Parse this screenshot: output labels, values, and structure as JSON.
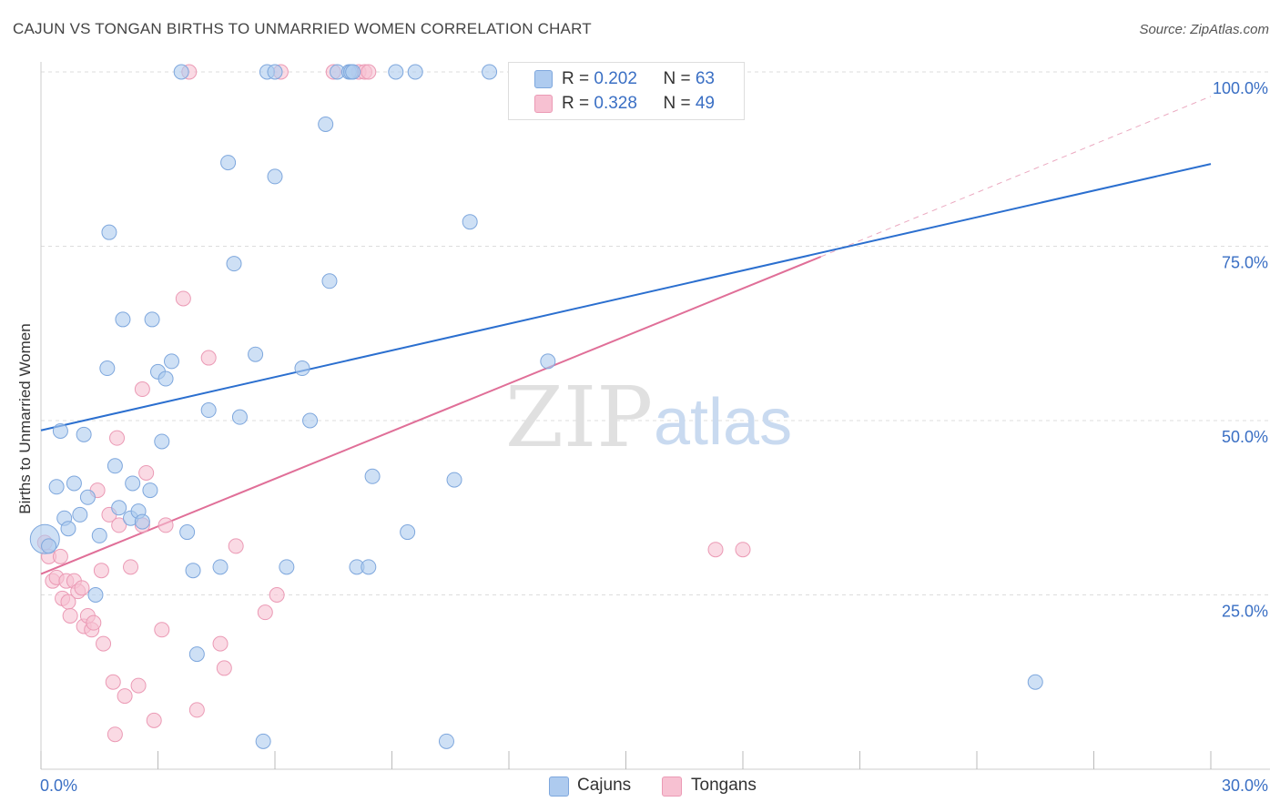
{
  "title": "CAJUN VS TONGAN BIRTHS TO UNMARRIED WOMEN CORRELATION CHART",
  "source": "Source: ZipAtlas.com",
  "watermark": {
    "zip": "ZIP",
    "atlas": "atlas"
  },
  "legend": {
    "rows": [
      {
        "r_label": "R = ",
        "r_value": "0.202",
        "n_label": "N = ",
        "n_value": "63"
      },
      {
        "r_label": "R = ",
        "r_value": "0.328",
        "n_label": "N = ",
        "n_value": "49"
      }
    ]
  },
  "bottom_legend": {
    "cajuns": "Cajuns",
    "tongans": "Tongans"
  },
  "colors": {
    "cajun_fill": "#aecbef",
    "cajun_stroke": "#7ea7dd",
    "cajun_line": "#2b6fcf",
    "tongan_fill": "#f7c1d2",
    "tongan_stroke": "#eb9ab5",
    "tongan_line": "#e06f98",
    "grid": "#dddddd",
    "tick_label": "#3a6fc4"
  },
  "chart_data": {
    "type": "scatter",
    "title": "CAJUN VS TONGAN BIRTHS TO UNMARRIED WOMEN CORRELATION CHART",
    "xlabel": "",
    "ylabel": "Births to Unmarried Women",
    "xlim": [
      0,
      30
    ],
    "ylim": [
      0,
      100
    ],
    "x_tick_labels": [
      "0.0%",
      "30.0%"
    ],
    "y_tick_labels": [
      "25.0%",
      "50.0%",
      "75.0%",
      "100.0%"
    ],
    "y_ticks": [
      25,
      50,
      75,
      100
    ],
    "series": [
      {
        "name": "Cajuns",
        "r": 0.202,
        "n": 63,
        "trend": {
          "x0": 0,
          "y0": 48.6,
          "x1": 30,
          "y1": 86.8
        },
        "points": [
          [
            0.1,
            33.0
          ],
          [
            0.2,
            32.0
          ],
          [
            0.4,
            40.5
          ],
          [
            0.5,
            48.5
          ],
          [
            0.6,
            36.0
          ],
          [
            0.7,
            34.5
          ],
          [
            0.85,
            41.0
          ],
          [
            1.0,
            36.5
          ],
          [
            1.1,
            48.0
          ],
          [
            1.2,
            39.0
          ],
          [
            1.4,
            25.0
          ],
          [
            1.5,
            33.5
          ],
          [
            1.7,
            57.5
          ],
          [
            1.75,
            77.0
          ],
          [
            1.9,
            43.5
          ],
          [
            2.0,
            37.5
          ],
          [
            2.1,
            64.5
          ],
          [
            2.3,
            36.0
          ],
          [
            2.35,
            41.0
          ],
          [
            2.5,
            37.0
          ],
          [
            2.6,
            35.5
          ],
          [
            2.8,
            40.0
          ],
          [
            2.85,
            64.5
          ],
          [
            3.0,
            57.0
          ],
          [
            3.1,
            47.0
          ],
          [
            3.2,
            56.0
          ],
          [
            3.35,
            58.5
          ],
          [
            3.6,
            100.0
          ],
          [
            3.75,
            34.0
          ],
          [
            3.9,
            28.5
          ],
          [
            4.0,
            16.5
          ],
          [
            4.3,
            51.5
          ],
          [
            4.6,
            29.0
          ],
          [
            4.8,
            87.0
          ],
          [
            4.95,
            72.5
          ],
          [
            5.1,
            50.5
          ],
          [
            5.5,
            59.5
          ],
          [
            5.7,
            4.0
          ],
          [
            5.8,
            100.0
          ],
          [
            6.0,
            100.0
          ],
          [
            6.0,
            85.0
          ],
          [
            6.3,
            29.0
          ],
          [
            6.7,
            57.5
          ],
          [
            6.9,
            50.0
          ],
          [
            7.3,
            92.5
          ],
          [
            7.4,
            70.0
          ],
          [
            7.6,
            100.0
          ],
          [
            7.9,
            100.0
          ],
          [
            7.95,
            100.0
          ],
          [
            8.0,
            100.0
          ],
          [
            8.1,
            29.0
          ],
          [
            8.4,
            29.0
          ],
          [
            8.5,
            42.0
          ],
          [
            9.1,
            100.0
          ],
          [
            9.4,
            34.0
          ],
          [
            9.6,
            100.0
          ],
          [
            10.4,
            4.0
          ],
          [
            10.6,
            41.5
          ],
          [
            11.0,
            78.5
          ],
          [
            11.5,
            100.0
          ],
          [
            12.5,
            100.0
          ],
          [
            13.0,
            58.5
          ],
          [
            25.5,
            12.5
          ]
        ]
      },
      {
        "name": "Tongans",
        "r": 0.328,
        "n": 49,
        "trend": {
          "x0": 0,
          "y0": 28.0,
          "x1": 20.0,
          "y1": 73.5
        },
        "ext": {
          "x0": 20.0,
          "y0": 73.5,
          "x1": 30,
          "y1": 96.5
        },
        "points": [
          [
            0.1,
            32.5
          ],
          [
            0.2,
            30.5
          ],
          [
            0.3,
            27.0
          ],
          [
            0.4,
            27.5
          ],
          [
            0.5,
            30.5
          ],
          [
            0.55,
            24.5
          ],
          [
            0.65,
            27.0
          ],
          [
            0.7,
            24.0
          ],
          [
            0.75,
            22.0
          ],
          [
            0.85,
            27.0
          ],
          [
            0.95,
            25.5
          ],
          [
            1.05,
            26.0
          ],
          [
            1.1,
            20.5
          ],
          [
            1.2,
            22.0
          ],
          [
            1.3,
            20.0
          ],
          [
            1.35,
            21.0
          ],
          [
            1.45,
            40.0
          ],
          [
            1.55,
            28.5
          ],
          [
            1.6,
            18.0
          ],
          [
            1.75,
            36.5
          ],
          [
            1.85,
            12.5
          ],
          [
            1.9,
            5.0
          ],
          [
            1.95,
            47.5
          ],
          [
            2.0,
            35.0
          ],
          [
            2.15,
            10.5
          ],
          [
            2.3,
            29.0
          ],
          [
            2.5,
            12.0
          ],
          [
            2.6,
            35.0
          ],
          [
            2.6,
            54.5
          ],
          [
            2.7,
            42.5
          ],
          [
            2.9,
            7.0
          ],
          [
            3.1,
            20.0
          ],
          [
            3.2,
            35.0
          ],
          [
            3.65,
            67.5
          ],
          [
            3.8,
            100.0
          ],
          [
            4.0,
            8.5
          ],
          [
            4.3,
            59.0
          ],
          [
            4.6,
            18.0
          ],
          [
            4.7,
            14.5
          ],
          [
            5.0,
            32.0
          ],
          [
            5.75,
            22.5
          ],
          [
            6.05,
            25.0
          ],
          [
            6.15,
            100.0
          ],
          [
            7.5,
            100.0
          ],
          [
            8.15,
            100.0
          ],
          [
            8.3,
            100.0
          ],
          [
            8.4,
            100.0
          ],
          [
            17.3,
            31.5
          ],
          [
            18.0,
            31.5
          ]
        ]
      }
    ]
  }
}
